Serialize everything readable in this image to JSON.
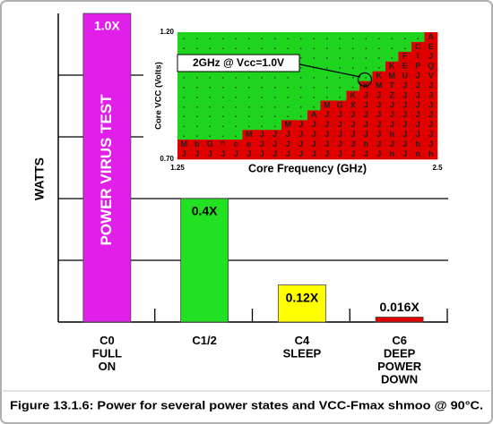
{
  "chart_data": [
    {
      "type": "bar",
      "y_label": "WATTS",
      "categories": [
        "C0\nFULL\nON",
        "C1/2",
        "C4\nSLEEP",
        "C6\nDEEP\nPOWER\nDOWN"
      ],
      "values": [
        1.0,
        0.4,
        0.12,
        0.016
      ],
      "value_labels": [
        "1.0X",
        "0.4X",
        "0.12X",
        "0.016X"
      ],
      "colors": [
        "#e020e8",
        "#22e022",
        "#ffff00",
        "#e00000"
      ],
      "bar_annotation": "POWER VIRUS TEST",
      "ylim": [
        0,
        1
      ],
      "yticks": [
        0.2,
        0.4,
        0.6,
        0.8
      ],
      "grid": true
    },
    {
      "type": "shmoo",
      "x_label": "Core Frequency (GHz)",
      "y_label": "Core VCC (Volts)",
      "xlim": [
        1.25,
        2.5
      ],
      "ylim": [
        0.7,
        1.2
      ],
      "xticks": [
        1.25,
        2.5
      ],
      "yticks": [
        {
          "value": 1.2,
          "label": "1.20"
        },
        {
          "value": 0.7,
          "label": "0.70"
        }
      ],
      "pass_color": "#1fd41f",
      "fail_color": "#e00000",
      "rows": [
        "...................A",
        "..................CE",
        ".................FIJ",
        "................KEPQ",
        "...............KMUJV",
        "..............KMTJJJ",
        ".............KJJZJJJ",
        "...........MGXJJJJJJ",
        "..........AJJJJJJJJJ",
        "........MJJJJJJJJJJJ",
        ".....MJJJJJJJJJJhJJJ",
        "MbG^ceJJJJJJJJhJJJhJ",
        "JJJJJJJJJJJJJJJJhJnh"
      ],
      "annotation": "2GHz @ Vcc=1.0V"
    }
  ],
  "caption": "Figure 13.1.6: Power for several power states and VCC-Fmax shmoo @ 90°C."
}
